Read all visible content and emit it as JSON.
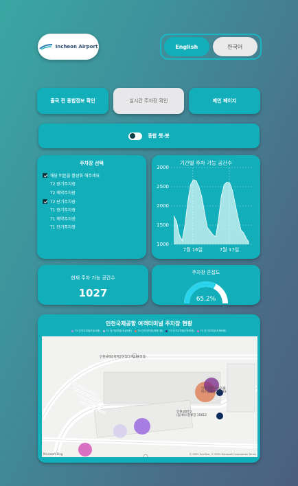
{
  "logo": {
    "text": "Incheon Airport"
  },
  "language": {
    "english": "English",
    "korean": "한국어"
  },
  "nav": {
    "departure_info": "출국 전 종합정보 확인",
    "realtime_parking": "실시간 주차장 확인",
    "main_page": "메인 페이지"
  },
  "chatbot": {
    "label": "종합 챗-봇",
    "enabled": true
  },
  "parking_select": {
    "title": "주차장 선택",
    "items": [
      {
        "label": "해당 버튼을 활성화 해주세요",
        "checked": true,
        "has_box": true
      },
      {
        "label": "T2 장기주차장",
        "checked": false,
        "has_box": false
      },
      {
        "label": "T2 예약주차장",
        "checked": false,
        "has_box": false
      },
      {
        "label": "T2 단기주차장",
        "checked": true,
        "has_box": true
      },
      {
        "label": "T1 장기주차장",
        "checked": false,
        "has_box": false
      },
      {
        "label": "T1 예약주차장",
        "checked": false,
        "has_box": false
      },
      {
        "label": "T1 단기주차장",
        "checked": false,
        "has_box": false
      }
    ]
  },
  "chart_data": {
    "type": "area",
    "title": "기간별 주차 가능 공간수",
    "xlabel": "",
    "ylabel": "",
    "x_tick_labels": [
      "7월 16일",
      "7월 17일"
    ],
    "ylim": [
      1000,
      3000
    ],
    "y_ticks": [
      1000,
      1500,
      2000,
      2500,
      3000
    ],
    "grid": true,
    "series": [
      {
        "color": "#bfeff0",
        "values": [
          1750,
          1600,
          1250,
          1100,
          1500,
          2100,
          2550,
          2680,
          2660,
          2500,
          2250,
          1850,
          1450,
          1350,
          1250,
          1200,
          1650,
          2250,
          2550,
          2620,
          2600,
          2400,
          2050,
          1700,
          1380,
          1300,
          1150,
          1050
        ]
      }
    ]
  },
  "availability": {
    "title": "현재 주차 가능 공간수",
    "value": "1027"
  },
  "congestion": {
    "title": "주차장 혼잡도",
    "percent": 65.2,
    "label": "65.2%"
  },
  "map_section": {
    "title": "인천국제공항 여객터미널 주차장 현황",
    "legend": [
      {
        "label": "T2 단기주차장(지상1층)",
        "color": "#b58de0"
      },
      {
        "label": "T2 단기주차장(지상2층)",
        "color": "#cbb9ea"
      },
      {
        "label": "T2 단기주차장(지하1층)",
        "color": "#e07d52"
      },
      {
        "label": "T2 단기주차장(지하2층)",
        "color": "#3b2a7a"
      },
      {
        "label": "T2 단기주차장(지하M층)",
        "color": "#e46fc6"
      }
    ],
    "labels": {
      "center_building": "인천국제공항제2여객터미널(출발층)",
      "bus_top": "인천공항T2(A3)출\n버스정류장 35619",
      "bus_bottom": "인천공항T2\n(동)버스정류장 35612"
    },
    "footer_left": "Microsoft Bing",
    "footer_right": "© 2025 TomTom, © 2025 Microsoft Corporation  Terms"
  }
}
